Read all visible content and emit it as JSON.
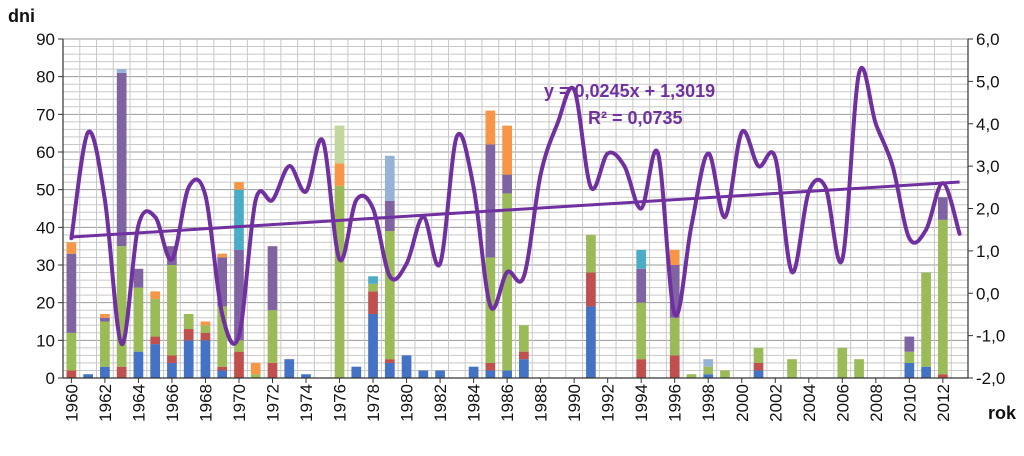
{
  "chart_data": {
    "type": "bar",
    "title": "",
    "ylabel": "dni",
    "xlabel": "rok",
    "ylim": [
      0,
      90
    ],
    "y2lim": [
      -2.0,
      6.0
    ],
    "grid": true,
    "y_ticks": [
      "0",
      "10",
      "20",
      "30",
      "40",
      "50",
      "60",
      "70",
      "80",
      "90"
    ],
    "y2_ticks": [
      "-2,0",
      "-1,0",
      "0,0",
      "1,0",
      "2,0",
      "3,0",
      "4,0",
      "5,0",
      "6,0"
    ],
    "x_ticks": [
      "1960",
      "1962",
      "1964",
      "1966",
      "1968",
      "1970",
      "1972",
      "1974",
      "1976",
      "1978",
      "1980",
      "1982",
      "1984",
      "1986",
      "1988",
      "1990",
      "1992",
      "1994",
      "1996",
      "1998",
      "2000",
      "2002",
      "2004",
      "2006",
      "2008",
      "2010",
      "2012"
    ],
    "annotation_equation": "y = 0,0245x + 1,3019",
    "annotation_r2": "R² = 0,0735",
    "colors": {
      "blue": "#4472c4",
      "red": "#c0504d",
      "green": "#9bbb59",
      "purple": "#8064a2",
      "teal": "#4bacc6",
      "orange": "#f79646",
      "lightblue": "#95b3d7",
      "lightgreen": "#c3d69b",
      "line": "#7030a0",
      "trend": "#7030a0"
    },
    "years": [
      1960,
      1961,
      1962,
      1963,
      1964,
      1965,
      1966,
      1967,
      1968,
      1969,
      1970,
      1971,
      1972,
      1973,
      1974,
      1975,
      1976,
      1977,
      1978,
      1979,
      1980,
      1981,
      1982,
      1983,
      1984,
      1985,
      1986,
      1987,
      1988,
      1989,
      1990,
      1991,
      1992,
      1993,
      1994,
      1995,
      1996,
      1997,
      1998,
      1999,
      2000,
      2001,
      2002,
      2003,
      2004,
      2005,
      2006,
      2007,
      2008,
      2009,
      2010,
      2011,
      2012,
      2013
    ],
    "stacks": [
      {
        "year": 1960,
        "segments": [
          [
            "red",
            2
          ],
          [
            "green",
            10
          ],
          [
            "purple",
            21
          ],
          [
            "orange",
            3
          ]
        ]
      },
      {
        "year": 1961,
        "segments": [
          [
            "blue",
            1
          ]
        ]
      },
      {
        "year": 1962,
        "segments": [
          [
            "blue",
            3
          ],
          [
            "green",
            12
          ],
          [
            "purple",
            1
          ],
          [
            "orange",
            1
          ]
        ]
      },
      {
        "year": 1963,
        "segments": [
          [
            "red",
            3
          ],
          [
            "green",
            32
          ],
          [
            "purple",
            46
          ],
          [
            "lightblue",
            1
          ]
        ]
      },
      {
        "year": 1964,
        "segments": [
          [
            "blue",
            7
          ],
          [
            "green",
            17
          ],
          [
            "purple",
            5
          ]
        ]
      },
      {
        "year": 1965,
        "segments": [
          [
            "blue",
            9
          ],
          [
            "red",
            2
          ],
          [
            "green",
            10
          ],
          [
            "orange",
            2
          ]
        ]
      },
      {
        "year": 1966,
        "segments": [
          [
            "blue",
            4
          ],
          [
            "red",
            2
          ],
          [
            "green",
            24
          ],
          [
            "purple",
            5
          ]
        ]
      },
      {
        "year": 1967,
        "segments": [
          [
            "blue",
            10
          ],
          [
            "red",
            3
          ],
          [
            "green",
            4
          ]
        ]
      },
      {
        "year": 1968,
        "segments": [
          [
            "blue",
            10
          ],
          [
            "red",
            2
          ],
          [
            "green",
            2
          ],
          [
            "orange",
            1
          ]
        ]
      },
      {
        "year": 1969,
        "segments": [
          [
            "blue",
            2
          ],
          [
            "red",
            1
          ],
          [
            "green",
            16
          ],
          [
            "purple",
            13
          ],
          [
            "orange",
            1
          ]
        ]
      },
      {
        "year": 1970,
        "segments": [
          [
            "red",
            7
          ],
          [
            "green",
            3
          ],
          [
            "purple",
            24
          ],
          [
            "teal",
            16
          ],
          [
            "orange",
            2
          ]
        ]
      },
      {
        "year": 1971,
        "segments": [
          [
            "green",
            1
          ],
          [
            "orange",
            3
          ]
        ]
      },
      {
        "year": 1972,
        "segments": [
          [
            "red",
            4
          ],
          [
            "green",
            14
          ],
          [
            "purple",
            17
          ]
        ]
      },
      {
        "year": 1973,
        "segments": [
          [
            "blue",
            5
          ]
        ]
      },
      {
        "year": 1974,
        "segments": [
          [
            "blue",
            1
          ]
        ]
      },
      {
        "year": 1976,
        "segments": [
          [
            "green",
            51
          ],
          [
            "orange",
            6
          ],
          [
            "lightgreen",
            10
          ]
        ]
      },
      {
        "year": 1977,
        "segments": [
          [
            "blue",
            3
          ]
        ]
      },
      {
        "year": 1978,
        "segments": [
          [
            "blue",
            17
          ],
          [
            "red",
            6
          ],
          [
            "green",
            2
          ],
          [
            "teal",
            2
          ]
        ]
      },
      {
        "year": 1979,
        "segments": [
          [
            "blue",
            4
          ],
          [
            "red",
            1
          ],
          [
            "green",
            34
          ],
          [
            "purple",
            8
          ],
          [
            "lightblue",
            12
          ]
        ]
      },
      {
        "year": 1980,
        "segments": [
          [
            "blue",
            6
          ]
        ]
      },
      {
        "year": 1981,
        "segments": [
          [
            "blue",
            2
          ]
        ]
      },
      {
        "year": 1982,
        "segments": [
          [
            "blue",
            2
          ]
        ]
      },
      {
        "year": 1984,
        "segments": [
          [
            "blue",
            3
          ]
        ]
      },
      {
        "year": 1985,
        "segments": [
          [
            "blue",
            2
          ],
          [
            "red",
            2
          ],
          [
            "green",
            28
          ],
          [
            "purple",
            30
          ],
          [
            "orange",
            9
          ]
        ]
      },
      {
        "year": 1986,
        "segments": [
          [
            "blue",
            2
          ],
          [
            "green",
            47
          ],
          [
            "purple",
            5
          ],
          [
            "orange",
            13
          ]
        ]
      },
      {
        "year": 1987,
        "segments": [
          [
            "blue",
            5
          ],
          [
            "red",
            2
          ],
          [
            "green",
            7
          ]
        ]
      },
      {
        "year": 1991,
        "segments": [
          [
            "blue",
            19
          ],
          [
            "red",
            9
          ],
          [
            "green",
            10
          ]
        ]
      },
      {
        "year": 1994,
        "segments": [
          [
            "red",
            5
          ],
          [
            "green",
            15
          ],
          [
            "purple",
            9
          ],
          [
            "teal",
            5
          ]
        ]
      },
      {
        "year": 1996,
        "segments": [
          [
            "red",
            6
          ],
          [
            "green",
            10
          ],
          [
            "purple",
            14
          ],
          [
            "orange",
            4
          ]
        ]
      },
      {
        "year": 1997,
        "segments": [
          [
            "green",
            1
          ]
        ]
      },
      {
        "year": 1998,
        "segments": [
          [
            "blue",
            1
          ],
          [
            "green",
            2
          ],
          [
            "lightblue",
            2
          ]
        ]
      },
      {
        "year": 1999,
        "segments": [
          [
            "green",
            2
          ]
        ]
      },
      {
        "year": 2001,
        "segments": [
          [
            "blue",
            2
          ],
          [
            "red",
            2
          ],
          [
            "green",
            4
          ]
        ]
      },
      {
        "year": 2003,
        "segments": [
          [
            "green",
            5
          ]
        ]
      },
      {
        "year": 2006,
        "segments": [
          [
            "green",
            8
          ]
        ]
      },
      {
        "year": 2007,
        "segments": [
          [
            "green",
            5
          ]
        ]
      },
      {
        "year": 2010,
        "segments": [
          [
            "blue",
            4
          ],
          [
            "green",
            3
          ],
          [
            "purple",
            4
          ]
        ]
      },
      {
        "year": 2011,
        "segments": [
          [
            "blue",
            3
          ],
          [
            "green",
            25
          ]
        ]
      },
      {
        "year": 2012,
        "segments": [
          [
            "red",
            1
          ],
          [
            "green",
            41
          ],
          [
            "purple",
            6
          ]
        ]
      }
    ],
    "line_series": {
      "axis": "right",
      "values": [
        1.3,
        3.8,
        2.2,
        -1.2,
        1.6,
        1.8,
        0.8,
        2.5,
        2.3,
        -0.5,
        -1.0,
        2.2,
        2.2,
        3.0,
        2.4,
        3.6,
        0.8,
        2.2,
        2.0,
        0.4,
        0.7,
        1.8,
        0.7,
        3.7,
        2.5,
        -0.3,
        0.5,
        0.4,
        2.8,
        4.0,
        4.8,
        2.5,
        3.3,
        3.0,
        2.0,
        3.3,
        -0.5,
        1.6,
        3.3,
        1.8,
        3.8,
        3.0,
        3.2,
        0.5,
        2.4,
        2.5,
        0.8,
        5.2,
        4.0,
        3.0,
        1.3,
        1.5,
        2.6,
        1.4
      ]
    },
    "trend_line": {
      "axis": "right",
      "slope": 0.0245,
      "intercept": 1.3019,
      "x_start_index": 1
    }
  }
}
